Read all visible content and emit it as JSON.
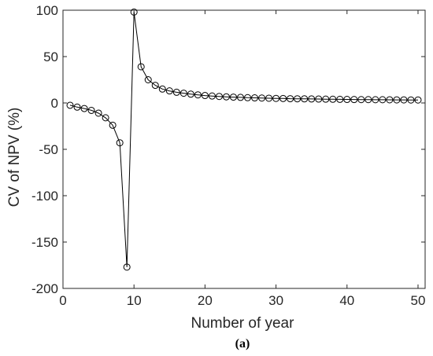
{
  "chart_data": {
    "type": "line",
    "xlabel": "Number of year",
    "ylabel": "CV of NPV (%)",
    "caption": "(a)",
    "xlim": [
      0,
      51
    ],
    "ylim": [
      -200,
      100
    ],
    "xticks": [
      0,
      10,
      20,
      30,
      40,
      50
    ],
    "yticks": [
      -200,
      -150,
      -100,
      -50,
      0,
      50,
      100
    ],
    "xtick_labels": [
      "0",
      "10",
      "20",
      "30",
      "40",
      "50"
    ],
    "ytick_labels": [
      "-200",
      "-150",
      "-100",
      "-50",
      "0",
      "50",
      "100"
    ],
    "grid": false,
    "marker": "open-circle",
    "line_color": "#000000",
    "series": [
      {
        "x": [
          1,
          2,
          3,
          4,
          5,
          6,
          7,
          8,
          9,
          10,
          11,
          12,
          13,
          14,
          15,
          16,
          17,
          18,
          19,
          20,
          21,
          22,
          23,
          24,
          25,
          26,
          27,
          28,
          29,
          30,
          31,
          32,
          33,
          34,
          35,
          36,
          37,
          38,
          39,
          40,
          41,
          42,
          43,
          44,
          45,
          46,
          47,
          48,
          49,
          50
        ],
        "values": [
          -2.5,
          -4.5,
          -6,
          -8,
          -11,
          -16,
          -24,
          -43,
          -177,
          98,
          39,
          25,
          19,
          15,
          13,
          11.5,
          10.5,
          9.5,
          8.7,
          8,
          7.5,
          7,
          6.6,
          6.3,
          6,
          5.7,
          5.5,
          5.3,
          5.1,
          4.9,
          4.8,
          4.6,
          4.5,
          4.4,
          4.3,
          4.2,
          4.1,
          4,
          3.9,
          3.8,
          3.7,
          3.6,
          3.6,
          3.5,
          3.5,
          3.4,
          3.3,
          3.3,
          3.2,
          3.2
        ]
      }
    ]
  }
}
